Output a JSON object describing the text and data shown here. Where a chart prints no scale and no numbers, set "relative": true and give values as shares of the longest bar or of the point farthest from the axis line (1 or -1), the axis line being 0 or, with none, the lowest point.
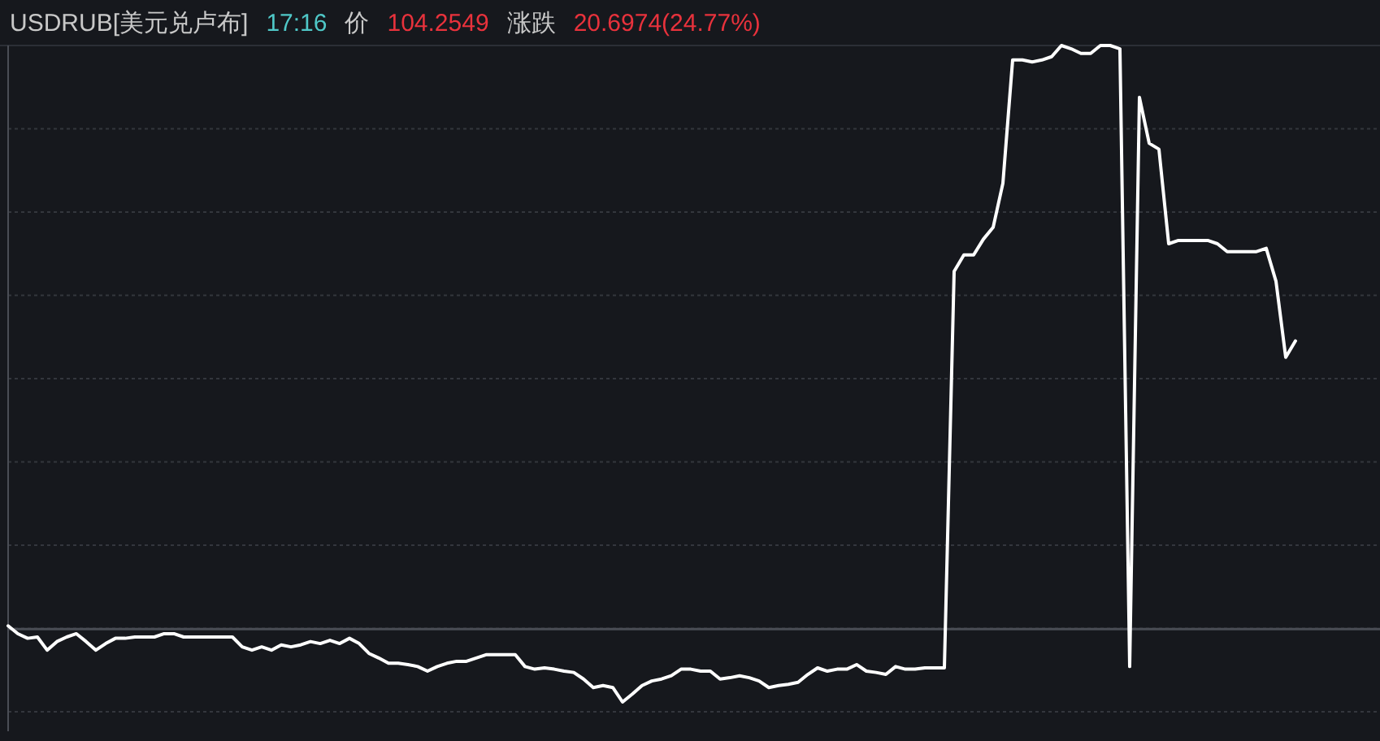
{
  "chart_data": {
    "type": "line",
    "title": "USDRUB[美元兑卢布]",
    "annotations": [
      "17:16",
      "价",
      "104.2549",
      "涨跌",
      "20.6974(24.77%)"
    ],
    "relative": true,
    "grid": "y",
    "categories": [
      null,
      null,
      null,
      null,
      null,
      null,
      null,
      null,
      null,
      null,
      null,
      null,
      null,
      null,
      null,
      null,
      null,
      null,
      null,
      null,
      null,
      null,
      null,
      null,
      null,
      null,
      null,
      null,
      null,
      null,
      null,
      null,
      null,
      null,
      null,
      null,
      null,
      null,
      null,
      null,
      null,
      null,
      null,
      null,
      null,
      null,
      null,
      null,
      null,
      null,
      null,
      null,
      null,
      null,
      null,
      null,
      null,
      null,
      null,
      null,
      null,
      null,
      null,
      null,
      null,
      null,
      null,
      null,
      null,
      null,
      null,
      null,
      null,
      null,
      null,
      null,
      null,
      null,
      null,
      null,
      null,
      null,
      null,
      null,
      null,
      null,
      null,
      null,
      null,
      null,
      null,
      null,
      null,
      null,
      null,
      null,
      null,
      null,
      null,
      null,
      null,
      null,
      null,
      null,
      null,
      null,
      null,
      null,
      null,
      null,
      null,
      null,
      null,
      null,
      null,
      null,
      null,
      null,
      null,
      null,
      null,
      null,
      null,
      null,
      null,
      null,
      null,
      null,
      null,
      null,
      null,
      null,
      null,
      null,
      null,
      null,
      null,
      null,
      null,
      null,
      null
    ],
    "series": [
      {
        "color": "#ffffff",
        "values": [
          0.116,
          0.104,
          0.097,
          0.099,
          0.079,
          0.092,
          0.099,
          0.104,
          0.092,
          0.079,
          0.089,
          0.097,
          0.097,
          0.099,
          0.099,
          0.099,
          0.104,
          0.104,
          0.099,
          0.099,
          0.099,
          0.099,
          0.099,
          0.099,
          0.084,
          0.079,
          0.084,
          0.079,
          0.087,
          0.084,
          0.087,
          0.092,
          0.089,
          0.094,
          0.089,
          0.097,
          0.089,
          0.074,
          0.067,
          0.059,
          0.059,
          0.057,
          0.054,
          0.047,
          0.054,
          0.059,
          0.062,
          0.062,
          0.067,
          0.072,
          0.072,
          0.072,
          0.072,
          0.054,
          0.05,
          0.052,
          0.05,
          0.047,
          0.045,
          0.035,
          0.022,
          0.025,
          0.022,
          0,
          0.012,
          0.025,
          0.032,
          0.035,
          0.04,
          0.05,
          0.05,
          0.047,
          0.047,
          0.035,
          0.037,
          0.04,
          0.037,
          0.032,
          0.022,
          0.025,
          0.027,
          0.03,
          0.042,
          0.052,
          0.047,
          0.05,
          0.05,
          0.057,
          0.047,
          0.045,
          0.042,
          0.054,
          0.05,
          0.05,
          0.052,
          0.052,
          0.052,
          0.656,
          0.681,
          0.681,
          0.705,
          0.723,
          0.79,
          0.978,
          0.978,
          0.975,
          0.978,
          0.983,
          1,
          0.995,
          0.988,
          0.988,
          1,
          1,
          0.995,
          0.054,
          0.921,
          0.851,
          0.842,
          0.698,
          0.703,
          0.703,
          0.703,
          0.703,
          0.698,
          0.686,
          0.686,
          0.686,
          0.686,
          0.691,
          0.641,
          0.525,
          0.55,
          null,
          null,
          null,
          null,
          null,
          null,
          null,
          null
        ]
      }
    ],
    "ref_lines": [
      {
        "axis": "y",
        "value": 0.111,
        "color": "#4a4d55"
      }
    ]
  }
}
